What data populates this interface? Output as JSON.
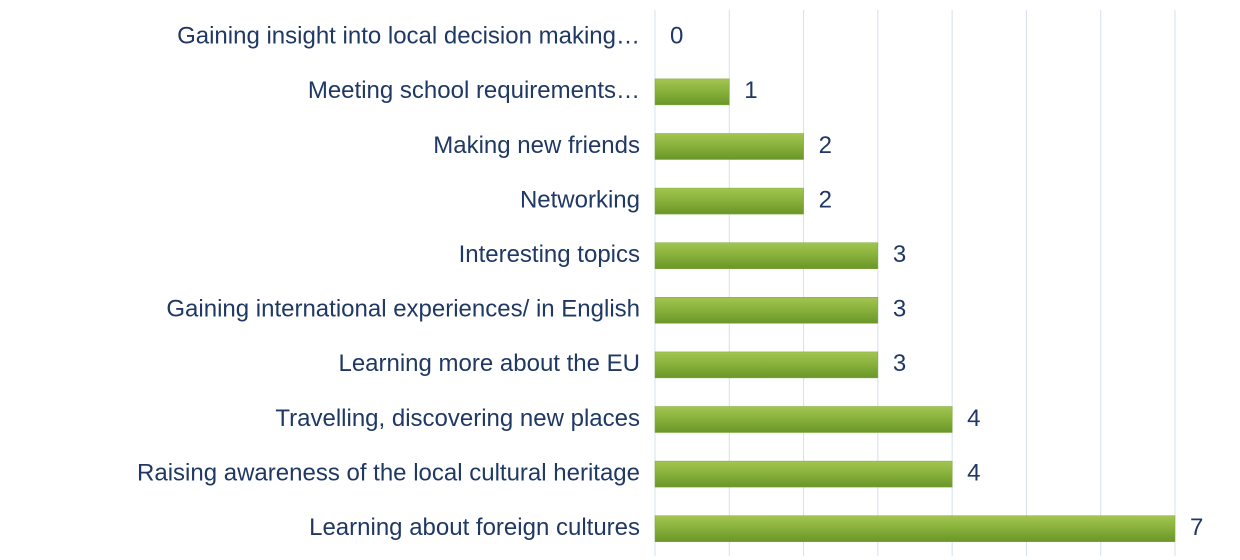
{
  "chart_data": {
    "type": "barh",
    "categories": [
      "Gaining insight into local decision making…",
      "Meeting school requirements…",
      "Making new friends",
      "Networking",
      "Interesting topics",
      "Gaining international experiences/  in English",
      "Learning more about the EU",
      "Travelling, discovering new places",
      "Raising awareness of the local cultural heritage",
      "Learning about foreign cultures"
    ],
    "values": [
      0,
      1,
      2,
      2,
      3,
      3,
      3,
      4,
      4,
      7
    ],
    "color": "#7aa832",
    "xlim": [
      0,
      7
    ],
    "xticks": [
      0,
      1,
      2,
      3,
      4,
      5,
      6,
      7
    ],
    "grid": true
  }
}
